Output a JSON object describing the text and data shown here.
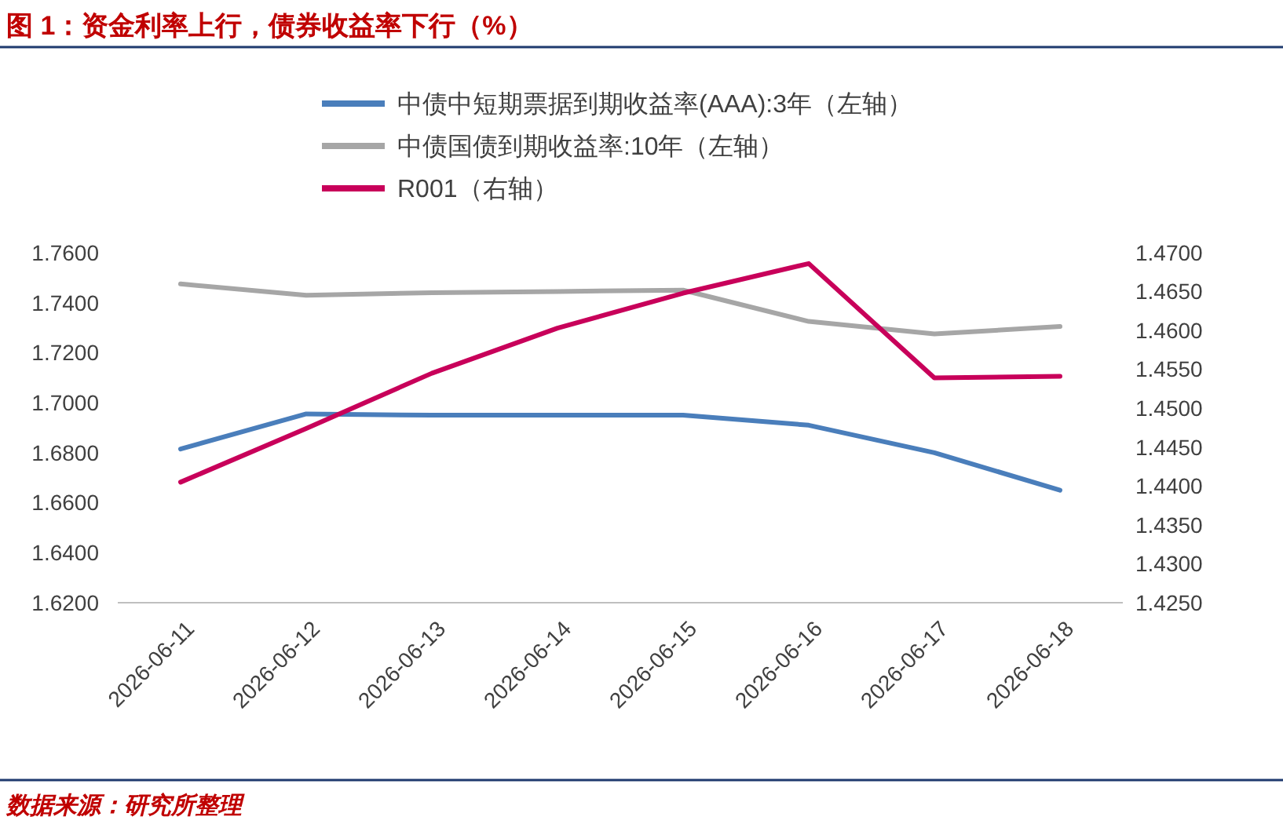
{
  "chart_data": {
    "type": "line",
    "title": "图 1：资金利率上行，债券收益率下行（%）",
    "categories": [
      "2026-06-11",
      "2026-06-12",
      "2026-06-13",
      "2026-06-14",
      "2026-06-15",
      "2026-06-16",
      "2026-06-17",
      "2026-06-18"
    ],
    "series": [
      {
        "name": "中债中短期票据到期收益率(AAA):3年（左轴）",
        "color": "#4a7ebb",
        "values": [
          1.6815,
          1.6955,
          1.695,
          1.695,
          1.695,
          1.691,
          1.68,
          1.665
        ]
      },
      {
        "name": "中债国债到期收益率:10年（左轴）",
        "color": "#a6a6a6",
        "values": [
          1.7475,
          1.743,
          1.744,
          1.7445,
          1.745,
          1.7325,
          1.7275,
          1.7305
        ]
      },
      {
        "name": "R001（右轴）",
        "color": "#c8005a",
        "axis": "y2",
        "values": [
          1.4405,
          1.4474,
          1.4545,
          1.4603,
          1.4648,
          1.4686,
          1.4539,
          1.4541
        ]
      }
    ],
    "ylim": [
      1.62,
      1.76
    ],
    "yticks": [
      {
        "value": 1.62,
        "label": "1.6200"
      },
      {
        "value": 1.64,
        "label": "1.6400"
      },
      {
        "value": 1.66,
        "label": "1.6600"
      },
      {
        "value": 1.68,
        "label": "1.6800"
      },
      {
        "value": 1.7,
        "label": "1.7000"
      },
      {
        "value": 1.72,
        "label": "1.7200"
      },
      {
        "value": 1.74,
        "label": "1.7400"
      },
      {
        "value": 1.76,
        "label": "1.7600"
      }
    ],
    "y2lim": [
      1.425,
      1.47
    ],
    "y2ticks": [
      {
        "value": 1.425,
        "label": "1.4250"
      },
      {
        "value": 1.43,
        "label": "1.4300"
      },
      {
        "value": 1.435,
        "label": "1.4350"
      },
      {
        "value": 1.44,
        "label": "1.4400"
      },
      {
        "value": 1.445,
        "label": "1.4450"
      },
      {
        "value": 1.45,
        "label": "1.4500"
      },
      {
        "value": 1.455,
        "label": "1.4550"
      },
      {
        "value": 1.46,
        "label": "1.4600"
      },
      {
        "value": 1.465,
        "label": "1.4650"
      },
      {
        "value": 1.47,
        "label": "1.4700"
      }
    ],
    "legend": "top",
    "annotations": [
      "数据来源：研究所整理"
    ]
  }
}
